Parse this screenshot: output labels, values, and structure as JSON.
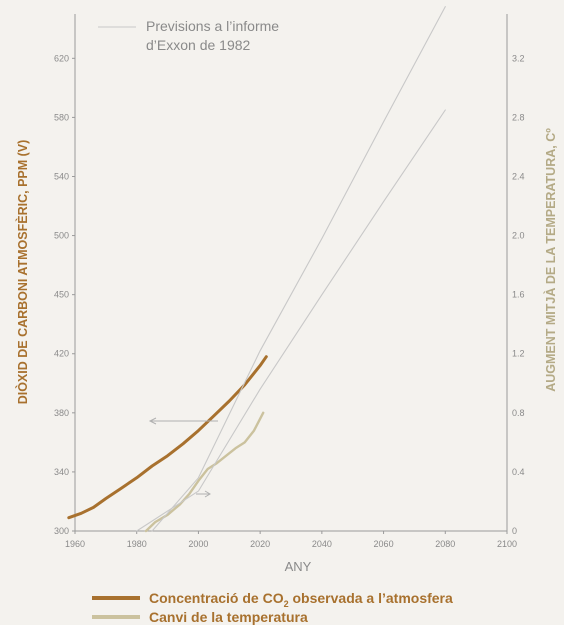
{
  "chart_data": {
    "type": "line",
    "xlabel": "ANY",
    "ylabel_left": "DIÒXID DE CARBONI ATMOSFÈRIC, PPM (V)",
    "ylabel_right": "AUGMENT MITJÀ DE LA TEMPERATURA, Cº",
    "x_ticks": [
      "1960",
      "1980",
      "2000",
      "2020",
      "2040",
      "2060",
      "2080",
      "2100"
    ],
    "xlim": [
      1960,
      2100
    ],
    "y_left_ticks": [
      "300",
      "340",
      "380",
      "420",
      "450",
      "500",
      "540",
      "580",
      "620"
    ],
    "y_right_ticks": [
      "0",
      "0.4",
      "0.8",
      "1.2",
      "1.6",
      "2.0",
      "2.4",
      "2.8",
      "3.2"
    ],
    "y_right_lim": [
      0,
      3.5
    ],
    "annotation": [
      "Previsions a l’informe",
      "d’Exxon de 1982"
    ],
    "legend": {
      "co2_prefix": "Concentració de CO",
      "co2_sub": "2",
      "co2_suffix": " observada a l’atmosfera",
      "temp": "Canvi de la temperatura"
    },
    "series": [
      {
        "key": "co2_observed",
        "axis": "right",
        "color": "#a8712e",
        "x": [
          1958,
          1962,
          1966,
          1970,
          1975,
          1980,
          1985,
          1990,
          1995,
          2000,
          2005,
          2010,
          2015,
          2020,
          2022
        ],
        "y": [
          0.09,
          0.12,
          0.16,
          0.22,
          0.29,
          0.36,
          0.44,
          0.51,
          0.59,
          0.68,
          0.78,
          0.88,
          0.99,
          1.12,
          1.18
        ]
      },
      {
        "key": "temp_observed",
        "axis": "right",
        "color": "#cbc29e",
        "x": [
          1983,
          1986,
          1990,
          1994,
          1997,
          2000,
          2003,
          2006,
          2009,
          2012,
          2015,
          2018,
          2021
        ],
        "y": [
          0.0,
          0.06,
          0.11,
          0.18,
          0.25,
          0.34,
          0.42,
          0.46,
          0.51,
          0.56,
          0.6,
          0.68,
          0.8
        ]
      },
      {
        "key": "exxon_co2_projection",
        "axis": "right",
        "color": "#c8c8c8",
        "x": [
          1985,
          2000,
          2020,
          2040,
          2060,
          2080
        ],
        "y": [
          0.0,
          0.36,
          1.22,
          1.98,
          2.77,
          3.55
        ]
      },
      {
        "key": "exxon_temp_projection",
        "axis": "right",
        "color": "#c8c8c8",
        "x": [
          1980,
          2000,
          2020,
          2040,
          2060,
          2080
        ],
        "y": [
          0.0,
          0.27,
          0.96,
          1.6,
          2.23,
          2.85
        ]
      }
    ]
  }
}
